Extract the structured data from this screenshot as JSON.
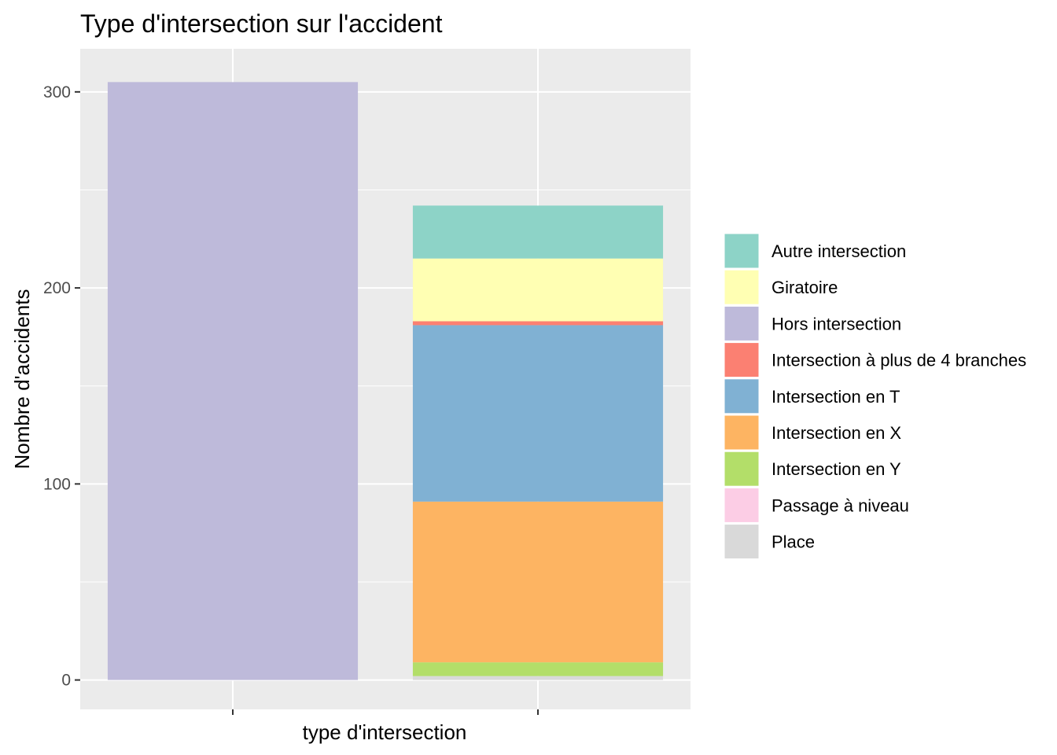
{
  "chart_data": {
    "type": "bar",
    "stacked": true,
    "title": "Type d'intersection sur l'accident",
    "xlabel": "type d'intersection",
    "ylabel": "Nombre d'accidents",
    "ylim": [
      -15,
      322
    ],
    "yticks": [
      0,
      100,
      200,
      300
    ],
    "grid": true,
    "legend_position": "right",
    "categories": [
      "",
      ""
    ],
    "series": [
      {
        "name": "Autre intersection",
        "color": "#8DD3C7",
        "values": [
          0,
          27
        ]
      },
      {
        "name": "Giratoire",
        "color": "#FFFFB3",
        "values": [
          0,
          32
        ]
      },
      {
        "name": "Hors intersection",
        "color": "#BEBADA",
        "values": [
          305,
          0
        ]
      },
      {
        "name": "Intersection à plus de 4 branches",
        "color": "#FB8072",
        "values": [
          0,
          2
        ]
      },
      {
        "name": "Intersection en T",
        "color": "#80B1D3",
        "values": [
          0,
          90
        ]
      },
      {
        "name": "Intersection en X",
        "color": "#FDB462",
        "values": [
          0,
          82
        ]
      },
      {
        "name": "Intersection en Y",
        "color": "#B3DE69",
        "values": [
          0,
          7
        ]
      },
      {
        "name": "Passage à niveau",
        "color": "#FCCDE5",
        "values": [
          0,
          0
        ]
      },
      {
        "name": "Place",
        "color": "#D9D9D9",
        "values": [
          0,
          2
        ]
      }
    ]
  }
}
